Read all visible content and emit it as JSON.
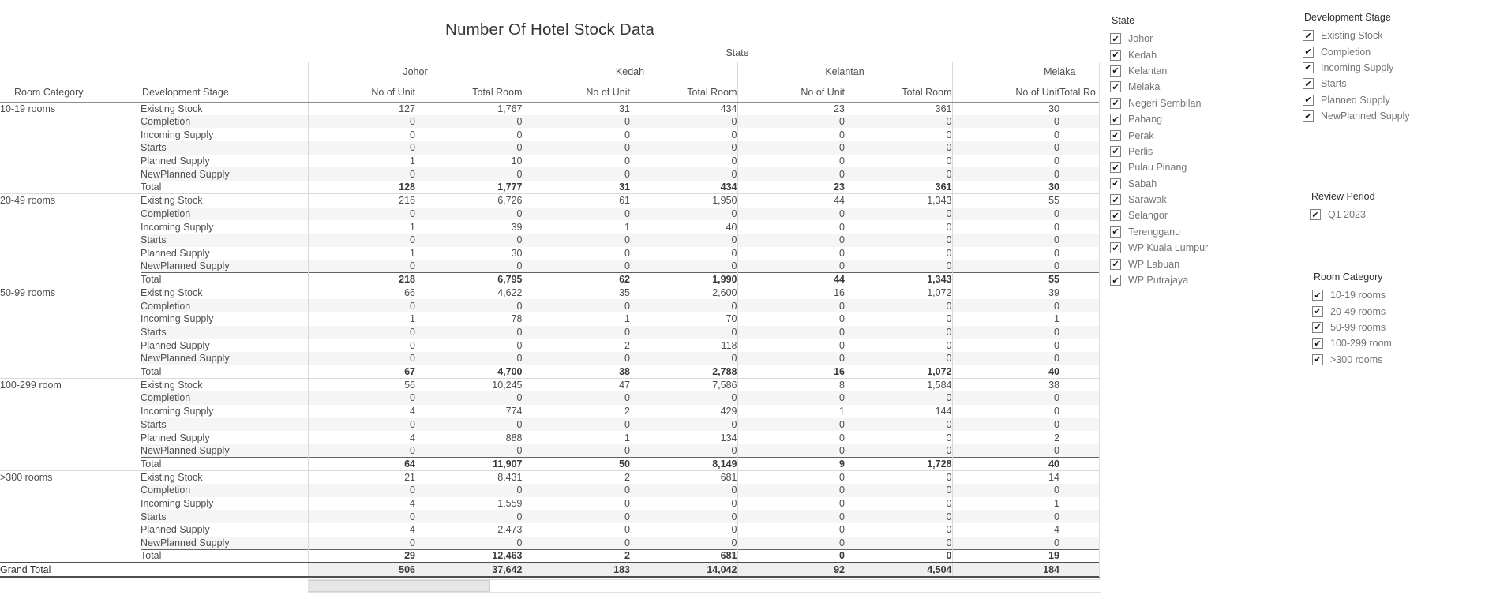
{
  "title": "Number Of Hotel Stock Data",
  "table": {
    "group_header": "State",
    "corner": {
      "room_category": "Room Category",
      "development_stage": "Development Stage"
    },
    "states": [
      "Johor",
      "Kedah",
      "Kelantan",
      "Melaka"
    ],
    "subheaders": [
      "No of Unit",
      "Total Room"
    ],
    "melaka_total_room_clipped": "Total Ro",
    "blocks": [
      {
        "category": "10-19 rooms",
        "rows": [
          {
            "stage": "Existing Stock",
            "values": [
              "127",
              "1,767",
              "31",
              "434",
              "23",
              "361",
              "30"
            ]
          },
          {
            "stage": "Completion",
            "values": [
              "0",
              "0",
              "0",
              "0",
              "0",
              "0",
              "0"
            ]
          },
          {
            "stage": "Incoming Supply",
            "values": [
              "0",
              "0",
              "0",
              "0",
              "0",
              "0",
              "0"
            ]
          },
          {
            "stage": "Starts",
            "values": [
              "0",
              "0",
              "0",
              "0",
              "0",
              "0",
              "0"
            ]
          },
          {
            "stage": "Planned Supply",
            "values": [
              "1",
              "10",
              "0",
              "0",
              "0",
              "0",
              "0"
            ]
          },
          {
            "stage": "NewPlanned Supply",
            "values": [
              "0",
              "0",
              "0",
              "0",
              "0",
              "0",
              "0"
            ]
          },
          {
            "stage": "Total",
            "is_total": true,
            "values": [
              "128",
              "1,777",
              "31",
              "434",
              "23",
              "361",
              "30"
            ]
          }
        ]
      },
      {
        "category": "20-49 rooms",
        "rows": [
          {
            "stage": "Existing Stock",
            "values": [
              "216",
              "6,726",
              "61",
              "1,950",
              "44",
              "1,343",
              "55"
            ]
          },
          {
            "stage": "Completion",
            "values": [
              "0",
              "0",
              "0",
              "0",
              "0",
              "0",
              "0"
            ]
          },
          {
            "stage": "Incoming Supply",
            "values": [
              "1",
              "39",
              "1",
              "40",
              "0",
              "0",
              "0"
            ]
          },
          {
            "stage": "Starts",
            "values": [
              "0",
              "0",
              "0",
              "0",
              "0",
              "0",
              "0"
            ]
          },
          {
            "stage": "Planned Supply",
            "values": [
              "1",
              "30",
              "0",
              "0",
              "0",
              "0",
              "0"
            ]
          },
          {
            "stage": "NewPlanned Supply",
            "values": [
              "0",
              "0",
              "0",
              "0",
              "0",
              "0",
              "0"
            ]
          },
          {
            "stage": "Total",
            "is_total": true,
            "values": [
              "218",
              "6,795",
              "62",
              "1,990",
              "44",
              "1,343",
              "55"
            ]
          }
        ]
      },
      {
        "category": "50-99 rooms",
        "rows": [
          {
            "stage": "Existing Stock",
            "values": [
              "66",
              "4,622",
              "35",
              "2,600",
              "16",
              "1,072",
              "39"
            ]
          },
          {
            "stage": "Completion",
            "values": [
              "0",
              "0",
              "0",
              "0",
              "0",
              "0",
              "0"
            ]
          },
          {
            "stage": "Incoming Supply",
            "values": [
              "1",
              "78",
              "1",
              "70",
              "0",
              "0",
              "1"
            ]
          },
          {
            "stage": "Starts",
            "values": [
              "0",
              "0",
              "0",
              "0",
              "0",
              "0",
              "0"
            ]
          },
          {
            "stage": "Planned Supply",
            "values": [
              "0",
              "0",
              "2",
              "118",
              "0",
              "0",
              "0"
            ]
          },
          {
            "stage": "NewPlanned Supply",
            "values": [
              "0",
              "0",
              "0",
              "0",
              "0",
              "0",
              "0"
            ]
          },
          {
            "stage": "Total",
            "is_total": true,
            "values": [
              "67",
              "4,700",
              "38",
              "2,788",
              "16",
              "1,072",
              "40"
            ]
          }
        ]
      },
      {
        "category": "100-299 room",
        "rows": [
          {
            "stage": "Existing Stock",
            "values": [
              "56",
              "10,245",
              "47",
              "7,586",
              "8",
              "1,584",
              "38"
            ]
          },
          {
            "stage": "Completion",
            "values": [
              "0",
              "0",
              "0",
              "0",
              "0",
              "0",
              "0"
            ]
          },
          {
            "stage": "Incoming Supply",
            "values": [
              "4",
              "774",
              "2",
              "429",
              "1",
              "144",
              "0"
            ]
          },
          {
            "stage": "Starts",
            "values": [
              "0",
              "0",
              "0",
              "0",
              "0",
              "0",
              "0"
            ]
          },
          {
            "stage": "Planned Supply",
            "values": [
              "4",
              "888",
              "1",
              "134",
              "0",
              "0",
              "2"
            ]
          },
          {
            "stage": "NewPlanned Supply",
            "values": [
              "0",
              "0",
              "0",
              "0",
              "0",
              "0",
              "0"
            ]
          },
          {
            "stage": "Total",
            "is_total": true,
            "values": [
              "64",
              "11,907",
              "50",
              "8,149",
              "9",
              "1,728",
              "40"
            ]
          }
        ]
      },
      {
        "category": ">300 rooms",
        "rows": [
          {
            "stage": "Existing Stock",
            "values": [
              "21",
              "8,431",
              "2",
              "681",
              "0",
              "0",
              "14"
            ]
          },
          {
            "stage": "Completion",
            "values": [
              "0",
              "0",
              "0",
              "0",
              "0",
              "0",
              "0"
            ]
          },
          {
            "stage": "Incoming Supply",
            "values": [
              "4",
              "1,559",
              "0",
              "0",
              "0",
              "0",
              "1"
            ]
          },
          {
            "stage": "Starts",
            "values": [
              "0",
              "0",
              "0",
              "0",
              "0",
              "0",
              "0"
            ]
          },
          {
            "stage": "Planned Supply",
            "values": [
              "4",
              "2,473",
              "0",
              "0",
              "0",
              "0",
              "4"
            ]
          },
          {
            "stage": "NewPlanned Supply",
            "values": [
              "0",
              "0",
              "0",
              "0",
              "0",
              "0",
              "0"
            ]
          },
          {
            "stage": "Total",
            "is_total": true,
            "values": [
              "29",
              "12,463",
              "2",
              "681",
              "0",
              "0",
              "19"
            ]
          }
        ]
      }
    ],
    "grand_total": {
      "label": "Grand Total",
      "values": [
        "506",
        "37,642",
        "183",
        "14,042",
        "92",
        "4,504",
        "184"
      ]
    }
  },
  "filters": {
    "state": {
      "title": "State",
      "items": [
        {
          "label": "Johor",
          "checked": true
        },
        {
          "label": "Kedah",
          "checked": true
        },
        {
          "label": "Kelantan",
          "checked": true
        },
        {
          "label": "Melaka",
          "checked": true
        },
        {
          "label": "Negeri Sembilan",
          "checked": true
        },
        {
          "label": "Pahang",
          "checked": true
        },
        {
          "label": "Perak",
          "checked": true
        },
        {
          "label": "Perlis",
          "checked": true
        },
        {
          "label": "Pulau Pinang",
          "checked": true
        },
        {
          "label": "Sabah",
          "checked": true
        },
        {
          "label": "Sarawak",
          "checked": true
        },
        {
          "label": "Selangor",
          "checked": true
        },
        {
          "label": "Terengganu",
          "checked": true
        },
        {
          "label": "WP Kuala Lumpur",
          "checked": true
        },
        {
          "label": "WP Labuan",
          "checked": true
        },
        {
          "label": "WP Putrajaya",
          "checked": true
        }
      ]
    },
    "development_stage": {
      "title": "Development Stage",
      "items": [
        {
          "label": "Existing Stock",
          "checked": true
        },
        {
          "label": "Completion",
          "checked": true
        },
        {
          "label": "Incoming Supply",
          "checked": true
        },
        {
          "label": "Starts",
          "checked": true
        },
        {
          "label": "Planned Supply",
          "checked": true
        },
        {
          "label": "NewPlanned Supply",
          "checked": true
        }
      ]
    },
    "review_period": {
      "title": "Review Period",
      "items": [
        {
          "label": "Q1 2023",
          "checked": true
        }
      ]
    },
    "room_category": {
      "title": "Room Category",
      "items": [
        {
          "label": "10-19 rooms",
          "checked": true
        },
        {
          "label": "20-49 rooms",
          "checked": true
        },
        {
          "label": "50-99 rooms",
          "checked": true
        },
        {
          "label": "100-299 room",
          "checked": true
        },
        {
          "label": ">300 rooms",
          "checked": true
        }
      ]
    }
  },
  "colors": {
    "band": "#f5f5f5",
    "grand_band": "#efefef",
    "accent_text": "#333333",
    "muted_text": "#9e9e9e"
  }
}
